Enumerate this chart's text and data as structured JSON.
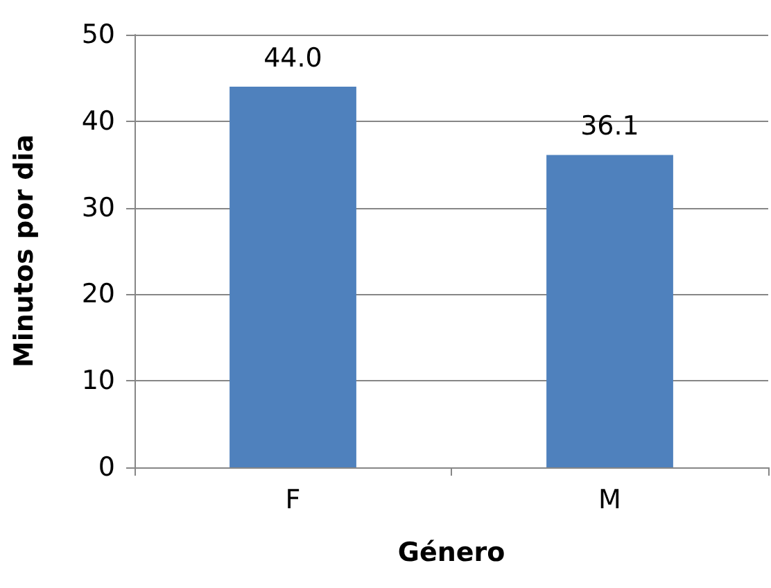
{
  "chart_data": {
    "type": "bar",
    "xlabel": "Género",
    "ylabel": "Minutos por dia",
    "categories": [
      "F",
      "M"
    ],
    "values": [
      44.0,
      36.1
    ],
    "color": "#4f81bd",
    "value_labels": [
      "44.0",
      "36.1"
    ],
    "ylim": [
      0,
      50
    ],
    "yticks": [
      0,
      10,
      20,
      30,
      40,
      50
    ],
    "grid": "y"
  }
}
